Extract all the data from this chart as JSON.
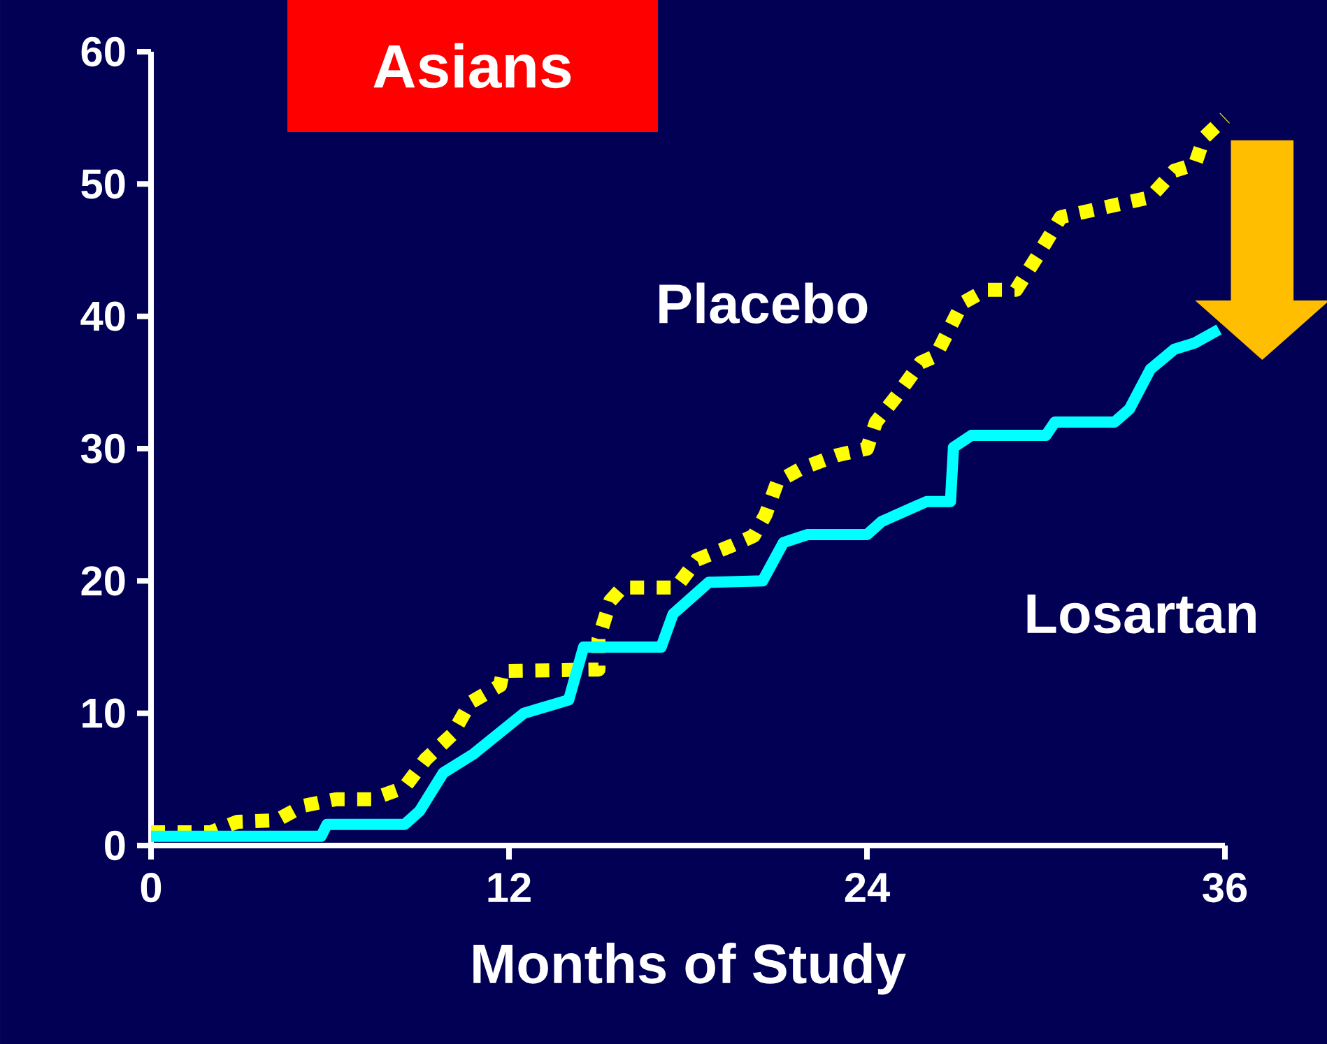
{
  "chart_data": {
    "type": "line",
    "title": "Asians",
    "xlabel": "Months of Study",
    "xlim": [
      0,
      36
    ],
    "xticks": [
      0,
      12,
      24,
      36
    ],
    "ylim": [
      0,
      60
    ],
    "yticks": [
      0,
      10,
      20,
      30,
      40,
      50,
      60
    ],
    "grid": false,
    "legend": false,
    "marker": "none",
    "series": [
      {
        "name": "Placebo",
        "color": "#ffff00",
        "line_style": "dotted",
        "x": [
          0,
          2,
          2.9,
          4.2,
          5.1,
          6.2,
          7.4,
          8.5,
          9.2,
          10.1,
          10.7,
          11.7,
          11.8,
          15,
          15.0,
          15.4,
          15.8,
          17.6,
          18.3,
          19.5,
          20.2,
          20.6,
          21,
          21.8,
          23,
          24,
          24.3,
          25,
          25.8,
          26.3,
          27.2,
          28,
          29,
          29.7,
          30.5,
          31.5,
          32.5,
          33.5,
          34.3,
          35,
          35.3,
          36
        ],
        "values": [
          1,
          1,
          1.8,
          1.9,
          3,
          3.5,
          3.5,
          4.4,
          6.5,
          8.4,
          10.8,
          12.1,
          13.2,
          13.3,
          15.6,
          18.5,
          19.5,
          19.5,
          21.6,
          22.7,
          23.4,
          25,
          27.5,
          28.5,
          29.5,
          30,
          32,
          34,
          36.5,
          37,
          41,
          42,
          42,
          44.5,
          47.5,
          48,
          48.5,
          49,
          51,
          51.5,
          53.5,
          55
        ]
      },
      {
        "name": "Losartan",
        "color": "#00ffff",
        "line_style": "solid",
        "x": [
          0,
          5.7,
          5.9,
          8.5,
          9,
          9.8,
          10.8,
          12.5,
          14,
          14.5,
          15.2,
          17.1,
          17.5,
          18.7,
          20.5,
          21.2,
          22,
          24,
          24.5,
          25.5,
          26,
          26.8,
          26.9,
          27.5,
          30,
          30.3,
          32.3,
          32.8,
          33.5,
          34.3,
          35,
          35.8
        ],
        "values": [
          0.7,
          0.7,
          1.6,
          1.6,
          2.6,
          5.5,
          6.9,
          10,
          11,
          15,
          15,
          15,
          17.5,
          19.9,
          20,
          22.9,
          23.5,
          23.5,
          24.5,
          25.5,
          26,
          26,
          30.1,
          31,
          31,
          32,
          32,
          33,
          36,
          37.5,
          38,
          39
        ]
      }
    ]
  }
}
